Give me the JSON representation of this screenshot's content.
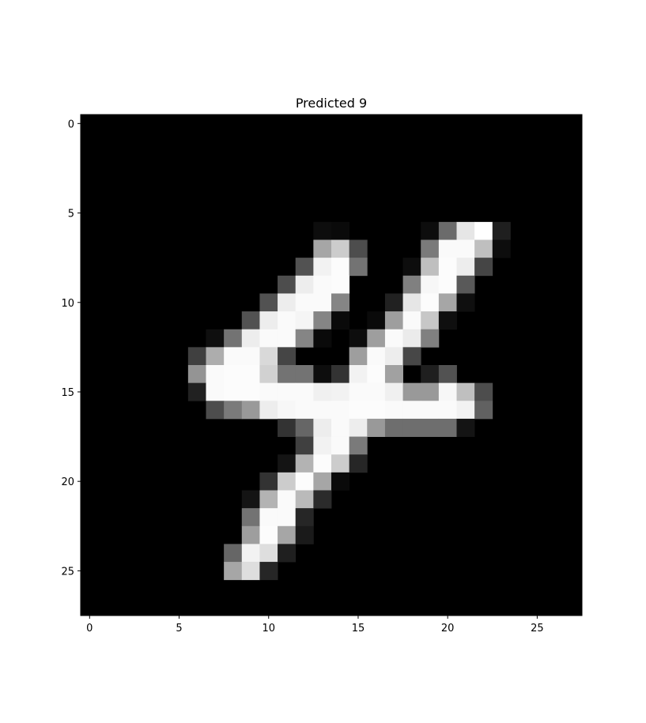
{
  "chart_data": {
    "type": "heatmap",
    "title": "Predicted 9",
    "xlabel": "",
    "ylabel": "",
    "colormap": "gray",
    "vmin": 0,
    "vmax": 1,
    "xlim": [
      -0.5,
      27.5
    ],
    "ylim": [
      27.5,
      -0.5
    ],
    "x_ticks": [
      0,
      5,
      10,
      15,
      20,
      25
    ],
    "y_ticks": [
      0,
      5,
      10,
      15,
      20,
      25
    ],
    "x_tick_labels": [
      "0",
      "5",
      "10",
      "15",
      "20",
      "25"
    ],
    "y_tick_labels": [
      "0",
      "5",
      "10",
      "15",
      "20",
      "25"
    ],
    "grid": false,
    "rows": 28,
    "cols": 28,
    "pixels": [
      {
        "r": 6,
        "c": 13,
        "v": 0.05
      },
      {
        "r": 6,
        "c": 14,
        "v": 0.04
      },
      {
        "r": 6,
        "c": 19,
        "v": 0.05
      },
      {
        "r": 6,
        "c": 20,
        "v": 0.42
      },
      {
        "r": 6,
        "c": 21,
        "v": 0.9
      },
      {
        "r": 6,
        "c": 22,
        "v": 1.0
      },
      {
        "r": 6,
        "c": 23,
        "v": 0.12
      },
      {
        "r": 7,
        "c": 13,
        "v": 0.65
      },
      {
        "r": 7,
        "c": 14,
        "v": 0.8
      },
      {
        "r": 7,
        "c": 15,
        "v": 0.3
      },
      {
        "r": 7,
        "c": 19,
        "v": 0.48
      },
      {
        "r": 7,
        "c": 20,
        "v": 0.98
      },
      {
        "r": 7,
        "c": 21,
        "v": 0.98
      },
      {
        "r": 7,
        "c": 22,
        "v": 0.75
      },
      {
        "r": 7,
        "c": 23,
        "v": 0.05
      },
      {
        "r": 8,
        "c": 12,
        "v": 0.32
      },
      {
        "r": 8,
        "c": 13,
        "v": 0.95
      },
      {
        "r": 8,
        "c": 14,
        "v": 0.99
      },
      {
        "r": 8,
        "c": 15,
        "v": 0.45
      },
      {
        "r": 8,
        "c": 18,
        "v": 0.05
      },
      {
        "r": 8,
        "c": 19,
        "v": 0.75
      },
      {
        "r": 8,
        "c": 20,
        "v": 0.99
      },
      {
        "r": 8,
        "c": 21,
        "v": 0.93
      },
      {
        "r": 8,
        "c": 22,
        "v": 0.27
      },
      {
        "r": 9,
        "c": 11,
        "v": 0.3
      },
      {
        "r": 9,
        "c": 12,
        "v": 0.93
      },
      {
        "r": 9,
        "c": 13,
        "v": 0.98
      },
      {
        "r": 9,
        "c": 14,
        "v": 0.99
      },
      {
        "r": 9,
        "c": 18,
        "v": 0.5
      },
      {
        "r": 9,
        "c": 19,
        "v": 0.97
      },
      {
        "r": 9,
        "c": 20,
        "v": 0.99
      },
      {
        "r": 9,
        "c": 21,
        "v": 0.35
      },
      {
        "r": 10,
        "c": 10,
        "v": 0.32
      },
      {
        "r": 10,
        "c": 11,
        "v": 0.93
      },
      {
        "r": 10,
        "c": 12,
        "v": 0.98
      },
      {
        "r": 10,
        "c": 13,
        "v": 0.98
      },
      {
        "r": 10,
        "c": 14,
        "v": 0.52
      },
      {
        "r": 10,
        "c": 17,
        "v": 0.13
      },
      {
        "r": 10,
        "c": 18,
        "v": 0.9
      },
      {
        "r": 10,
        "c": 19,
        "v": 0.99
      },
      {
        "r": 10,
        "c": 20,
        "v": 0.65
      },
      {
        "r": 10,
        "c": 21,
        "v": 0.06
      },
      {
        "r": 11,
        "c": 9,
        "v": 0.32
      },
      {
        "r": 11,
        "c": 10,
        "v": 0.93
      },
      {
        "r": 11,
        "c": 11,
        "v": 0.98
      },
      {
        "r": 11,
        "c": 12,
        "v": 0.96
      },
      {
        "r": 11,
        "c": 13,
        "v": 0.52
      },
      {
        "r": 11,
        "c": 14,
        "v": 0.04
      },
      {
        "r": 11,
        "c": 16,
        "v": 0.04
      },
      {
        "r": 11,
        "c": 17,
        "v": 0.62
      },
      {
        "r": 11,
        "c": 18,
        "v": 0.98
      },
      {
        "r": 11,
        "c": 19,
        "v": 0.78
      },
      {
        "r": 11,
        "c": 20,
        "v": 0.06
      },
      {
        "r": 12,
        "c": 7,
        "v": 0.06
      },
      {
        "r": 12,
        "c": 8,
        "v": 0.45
      },
      {
        "r": 12,
        "c": 9,
        "v": 0.93
      },
      {
        "r": 12,
        "c": 10,
        "v": 0.98
      },
      {
        "r": 12,
        "c": 11,
        "v": 0.98
      },
      {
        "r": 12,
        "c": 12,
        "v": 0.52
      },
      {
        "r": 12,
        "c": 13,
        "v": 0.04
      },
      {
        "r": 12,
        "c": 15,
        "v": 0.05
      },
      {
        "r": 12,
        "c": 16,
        "v": 0.62
      },
      {
        "r": 12,
        "c": 17,
        "v": 0.98
      },
      {
        "r": 12,
        "c": 18,
        "v": 0.92
      },
      {
        "r": 12,
        "c": 19,
        "v": 0.5
      },
      {
        "r": 13,
        "c": 6,
        "v": 0.25
      },
      {
        "r": 13,
        "c": 7,
        "v": 0.68
      },
      {
        "r": 13,
        "c": 8,
        "v": 0.98
      },
      {
        "r": 13,
        "c": 9,
        "v": 0.98
      },
      {
        "r": 13,
        "c": 10,
        "v": 0.85
      },
      {
        "r": 13,
        "c": 11,
        "v": 0.27
      },
      {
        "r": 13,
        "c": 15,
        "v": 0.62
      },
      {
        "r": 13,
        "c": 16,
        "v": 0.98
      },
      {
        "r": 13,
        "c": 17,
        "v": 0.93
      },
      {
        "r": 13,
        "c": 18,
        "v": 0.28
      },
      {
        "r": 14,
        "c": 6,
        "v": 0.58
      },
      {
        "r": 14,
        "c": 7,
        "v": 0.98
      },
      {
        "r": 14,
        "c": 8,
        "v": 0.99
      },
      {
        "r": 14,
        "c": 9,
        "v": 0.99
      },
      {
        "r": 14,
        "c": 10,
        "v": 0.82
      },
      {
        "r": 14,
        "c": 11,
        "v": 0.45
      },
      {
        "r": 14,
        "c": 12,
        "v": 0.45
      },
      {
        "r": 14,
        "c": 13,
        "v": 0.05
      },
      {
        "r": 14,
        "c": 14,
        "v": 0.2
      },
      {
        "r": 14,
        "c": 15,
        "v": 0.95
      },
      {
        "r": 14,
        "c": 16,
        "v": 0.99
      },
      {
        "r": 14,
        "c": 17,
        "v": 0.63
      },
      {
        "r": 14,
        "c": 19,
        "v": 0.12
      },
      {
        "r": 14,
        "c": 20,
        "v": 0.32
      },
      {
        "r": 15,
        "c": 6,
        "v": 0.13
      },
      {
        "r": 15,
        "c": 7,
        "v": 0.98
      },
      {
        "r": 15,
        "c": 8,
        "v": 0.99
      },
      {
        "r": 15,
        "c": 9,
        "v": 0.99
      },
      {
        "r": 15,
        "c": 10,
        "v": 0.98
      },
      {
        "r": 15,
        "c": 11,
        "v": 0.98
      },
      {
        "r": 15,
        "c": 12,
        "v": 0.98
      },
      {
        "r": 15,
        "c": 13,
        "v": 0.94
      },
      {
        "r": 15,
        "c": 14,
        "v": 0.95
      },
      {
        "r": 15,
        "c": 15,
        "v": 0.98
      },
      {
        "r": 15,
        "c": 16,
        "v": 0.98
      },
      {
        "r": 15,
        "c": 17,
        "v": 0.94
      },
      {
        "r": 15,
        "c": 18,
        "v": 0.6
      },
      {
        "r": 15,
        "c": 19,
        "v": 0.6
      },
      {
        "r": 15,
        "c": 20,
        "v": 0.97
      },
      {
        "r": 15,
        "c": 21,
        "v": 0.75
      },
      {
        "r": 15,
        "c": 22,
        "v": 0.3
      },
      {
        "r": 16,
        "c": 7,
        "v": 0.3
      },
      {
        "r": 16,
        "c": 8,
        "v": 0.48
      },
      {
        "r": 16,
        "c": 9,
        "v": 0.6
      },
      {
        "r": 16,
        "c": 10,
        "v": 0.93
      },
      {
        "r": 16,
        "c": 11,
        "v": 0.97
      },
      {
        "r": 16,
        "c": 12,
        "v": 0.98
      },
      {
        "r": 16,
        "c": 13,
        "v": 0.98
      },
      {
        "r": 16,
        "c": 14,
        "v": 0.98
      },
      {
        "r": 16,
        "c": 15,
        "v": 0.99
      },
      {
        "r": 16,
        "c": 16,
        "v": 0.99
      },
      {
        "r": 16,
        "c": 17,
        "v": 0.98
      },
      {
        "r": 16,
        "c": 18,
        "v": 0.98
      },
      {
        "r": 16,
        "c": 19,
        "v": 0.98
      },
      {
        "r": 16,
        "c": 20,
        "v": 0.98
      },
      {
        "r": 16,
        "c": 21,
        "v": 0.95
      },
      {
        "r": 16,
        "c": 22,
        "v": 0.38
      },
      {
        "r": 17,
        "c": 11,
        "v": 0.2
      },
      {
        "r": 17,
        "c": 12,
        "v": 0.4
      },
      {
        "r": 17,
        "c": 13,
        "v": 0.93
      },
      {
        "r": 17,
        "c": 14,
        "v": 0.98
      },
      {
        "r": 17,
        "c": 15,
        "v": 0.93
      },
      {
        "r": 17,
        "c": 16,
        "v": 0.6
      },
      {
        "r": 17,
        "c": 17,
        "v": 0.43
      },
      {
        "r": 17,
        "c": 18,
        "v": 0.43
      },
      {
        "r": 17,
        "c": 19,
        "v": 0.43
      },
      {
        "r": 17,
        "c": 20,
        "v": 0.43
      },
      {
        "r": 17,
        "c": 21,
        "v": 0.08
      },
      {
        "r": 18,
        "c": 12,
        "v": 0.25
      },
      {
        "r": 18,
        "c": 13,
        "v": 0.95
      },
      {
        "r": 18,
        "c": 14,
        "v": 0.98
      },
      {
        "r": 18,
        "c": 15,
        "v": 0.48
      },
      {
        "r": 19,
        "c": 11,
        "v": 0.08
      },
      {
        "r": 19,
        "c": 12,
        "v": 0.7
      },
      {
        "r": 19,
        "c": 13,
        "v": 0.99
      },
      {
        "r": 19,
        "c": 14,
        "v": 0.8
      },
      {
        "r": 19,
        "c": 15,
        "v": 0.15
      },
      {
        "r": 20,
        "c": 10,
        "v": 0.2
      },
      {
        "r": 20,
        "c": 11,
        "v": 0.8
      },
      {
        "r": 20,
        "c": 12,
        "v": 0.99
      },
      {
        "r": 20,
        "c": 13,
        "v": 0.65
      },
      {
        "r": 20,
        "c": 14,
        "v": 0.04
      },
      {
        "r": 21,
        "c": 9,
        "v": 0.08
      },
      {
        "r": 21,
        "c": 10,
        "v": 0.7
      },
      {
        "r": 21,
        "c": 11,
        "v": 0.98
      },
      {
        "r": 21,
        "c": 12,
        "v": 0.73
      },
      {
        "r": 21,
        "c": 13,
        "v": 0.17
      },
      {
        "r": 22,
        "c": 9,
        "v": 0.45
      },
      {
        "r": 22,
        "c": 10,
        "v": 0.98
      },
      {
        "r": 22,
        "c": 11,
        "v": 0.98
      },
      {
        "r": 22,
        "c": 12,
        "v": 0.15
      },
      {
        "r": 23,
        "c": 9,
        "v": 0.62
      },
      {
        "r": 23,
        "c": 10,
        "v": 0.99
      },
      {
        "r": 23,
        "c": 11,
        "v": 0.65
      },
      {
        "r": 23,
        "c": 12,
        "v": 0.1
      },
      {
        "r": 24,
        "c": 8,
        "v": 0.4
      },
      {
        "r": 24,
        "c": 9,
        "v": 0.95
      },
      {
        "r": 24,
        "c": 10,
        "v": 0.87
      },
      {
        "r": 24,
        "c": 11,
        "v": 0.12
      },
      {
        "r": 25,
        "c": 8,
        "v": 0.65
      },
      {
        "r": 25,
        "c": 9,
        "v": 0.87
      },
      {
        "r": 25,
        "c": 10,
        "v": 0.15
      }
    ]
  }
}
